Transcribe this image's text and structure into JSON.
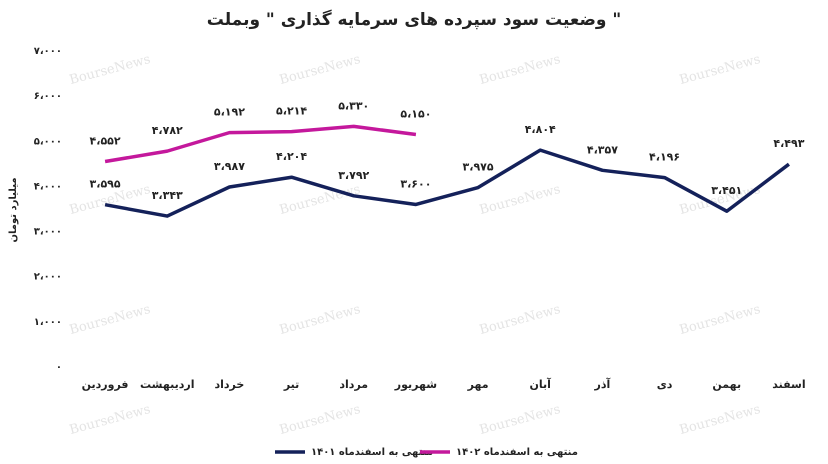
{
  "chart_data": {
    "type": "line",
    "title": "وضعیت سود سپرده های سرمایه گذاری \" وبملت \"",
    "y_label": "میلیارد تومان",
    "watermark": "BourseNews",
    "categories": [
      "فروردین",
      "اردیبهشت",
      "خرداد",
      "تیر",
      "مرداد",
      "شهریور",
      "مهر",
      "آبان",
      "آذر",
      "دی",
      "بهمن",
      "اسفند"
    ],
    "series": [
      {
        "name": "منتهی به اسفندماه ۱۴۰۱",
        "color": "#14215a",
        "values": [
          3595,
          3343,
          3987,
          4204,
          3792,
          3600,
          3975,
          4804,
          4357,
          4196,
          3451,
          4493
        ],
        "value_labels": [
          "۳،۵۹۵",
          "۳،۳۴۳",
          "۳،۹۸۷",
          "۴،۲۰۴",
          "۳،۷۹۲",
          "۳،۶۰۰",
          "۳،۹۷۵",
          "۴،۸۰۴",
          "۴،۳۵۷",
          "۴،۱۹۶",
          "۳،۴۵۱",
          "۴،۴۹۳"
        ]
      },
      {
        "name": "منتهی به اسفندماه ۱۴۰۲",
        "color": "#c4189c",
        "values": [
          4552,
          4782,
          5192,
          5214,
          5330,
          5150,
          null,
          null,
          null,
          null,
          null,
          null
        ],
        "value_labels": [
          "۴،۵۵۲",
          "۴،۷۸۲",
          "۵،۱۹۲",
          "۵،۲۱۴",
          "۵،۳۳۰",
          "۵،۱۵۰",
          null,
          null,
          null,
          null,
          null,
          null
        ]
      }
    ],
    "ylim": [
      0,
      7000
    ],
    "yticks": [
      {
        "value": 0,
        "label": "۰"
      },
      {
        "value": 1000,
        "label": "۱،۰۰۰"
      },
      {
        "value": 2000,
        "label": "۲،۰۰۰"
      },
      {
        "value": 3000,
        "label": "۳،۰۰۰"
      },
      {
        "value": 4000,
        "label": "۴،۰۰۰"
      },
      {
        "value": 5000,
        "label": "۵،۰۰۰"
      },
      {
        "value": 6000,
        "label": "۶،۰۰۰"
      },
      {
        "value": 7000,
        "label": "۷،۰۰۰"
      }
    ],
    "grid": false,
    "legend": "bottom"
  }
}
